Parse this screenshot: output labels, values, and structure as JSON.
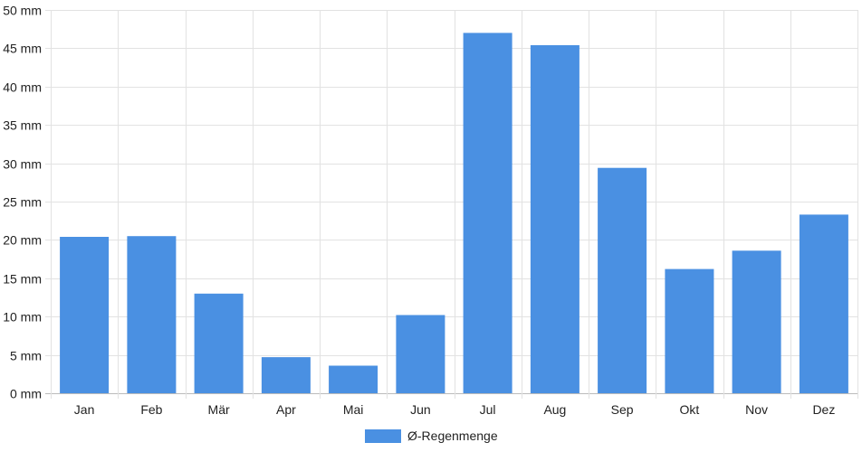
{
  "chart_data": {
    "type": "bar",
    "categories": [
      "Jan",
      "Feb",
      "Mär",
      "Apr",
      "Mai",
      "Jun",
      "Jul",
      "Aug",
      "Sep",
      "Okt",
      "Nov",
      "Dez"
    ],
    "series": [
      {
        "name": "Ø-Regenmenge",
        "values": [
          20.4,
          20.5,
          13.0,
          4.7,
          3.6,
          10.2,
          47.0,
          45.4,
          29.4,
          16.2,
          18.6,
          23.3
        ],
        "color": "#4a90e2"
      }
    ],
    "y_unit": "mm",
    "ylim": [
      0,
      50
    ],
    "y_ticks": [
      0,
      5,
      10,
      15,
      20,
      25,
      30,
      35,
      40,
      45,
      50
    ],
    "y_tick_labels": [
      "0 mm",
      "5 mm",
      "10 mm",
      "15 mm",
      "20 mm",
      "25 mm",
      "30 mm",
      "35 mm",
      "40 mm",
      "45 mm",
      "50 mm"
    ],
    "grid": true,
    "legend_position": "bottom-center",
    "title": "",
    "xlabel": "",
    "ylabel": ""
  }
}
